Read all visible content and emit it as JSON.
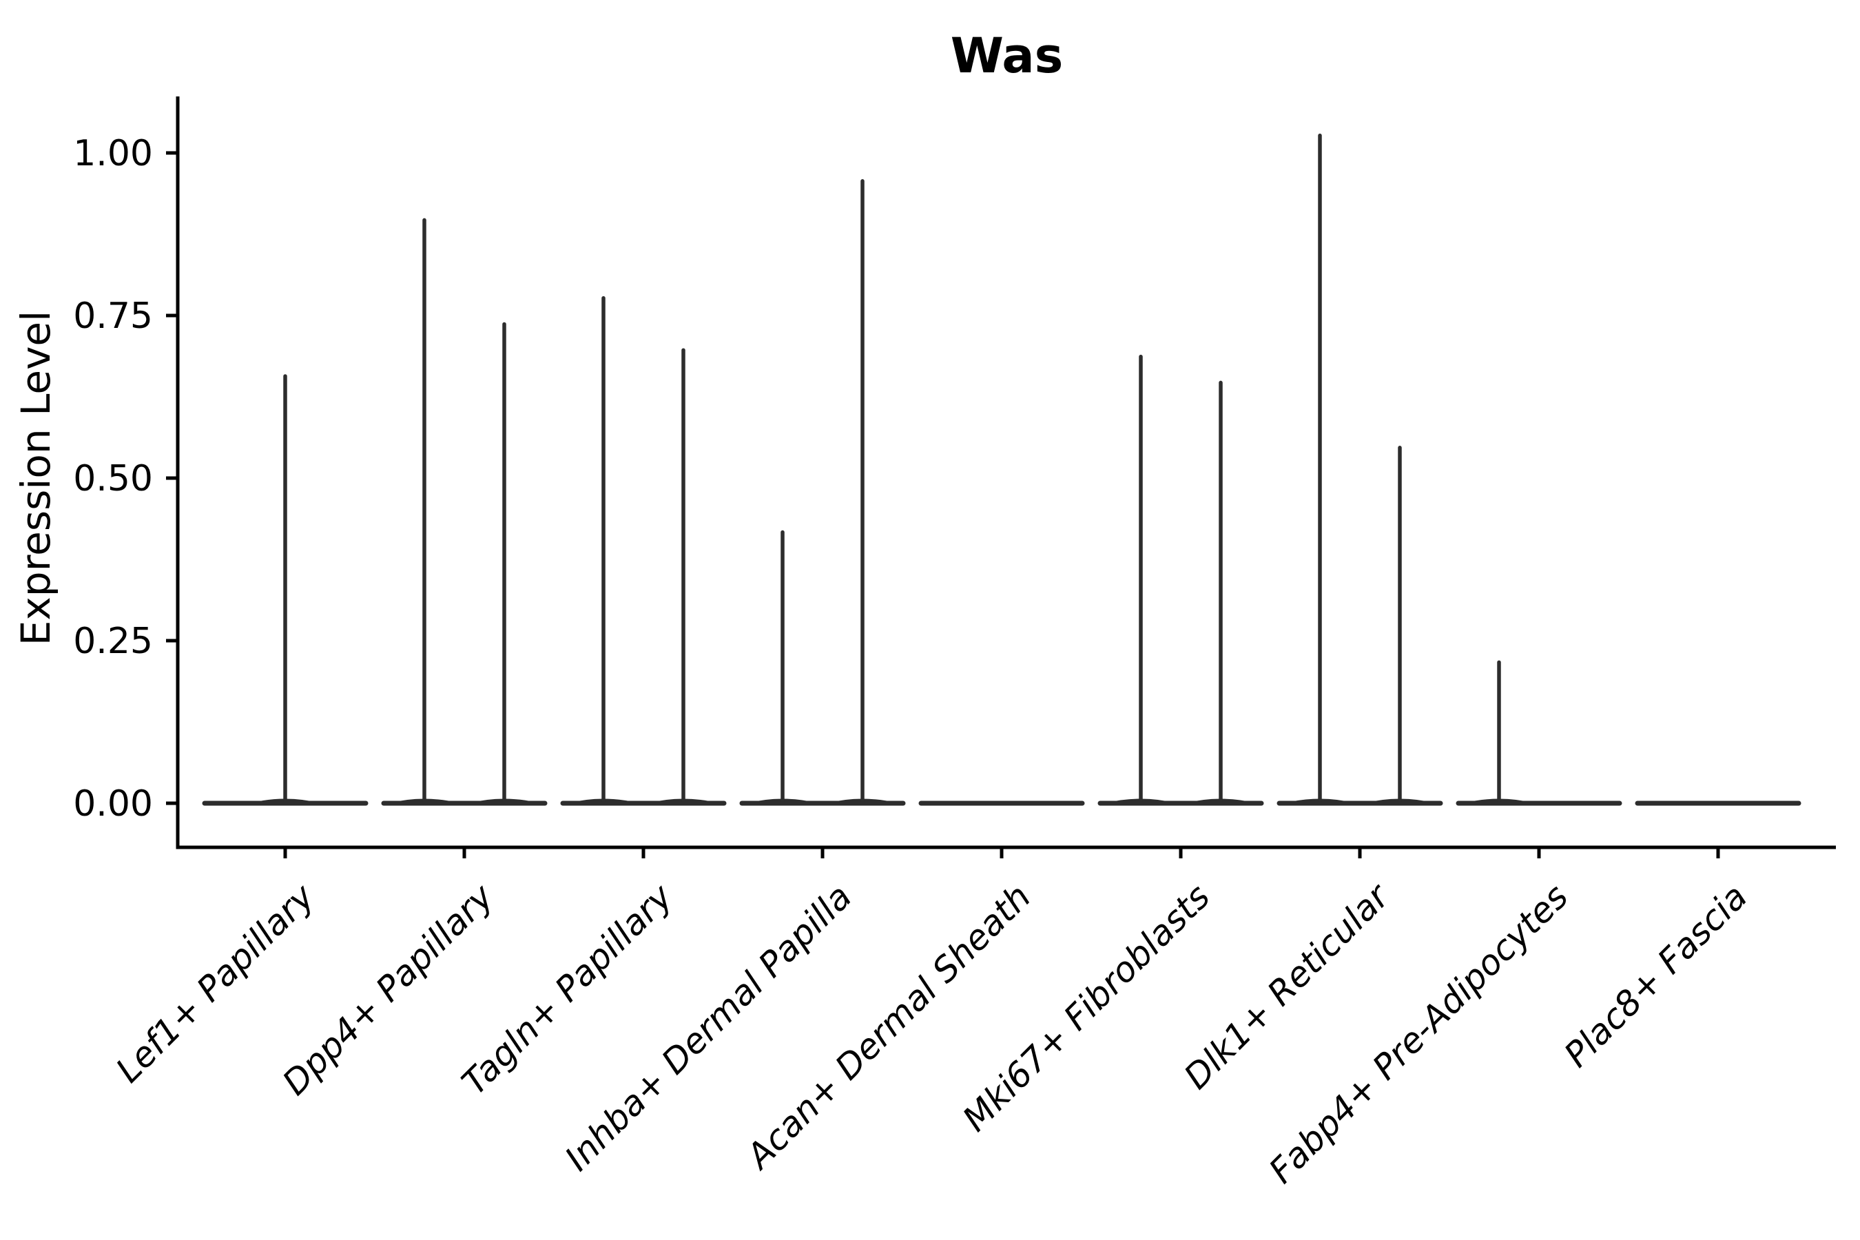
{
  "figure": {
    "title": "Was",
    "ylabel": "Expression Level"
  },
  "chart_data": {
    "type": "violin",
    "title": "Was",
    "xlabel": "",
    "ylabel": "Expression Level",
    "ylim": [
      0,
      1.09
    ],
    "grid": false,
    "legend": "none",
    "ytick_labels": [
      "1.00",
      "0.75",
      "0.50",
      "0.25",
      "0.00"
    ],
    "ytick_values": [
      1.0,
      0.75,
      0.5,
      0.25,
      0.0
    ],
    "x_label_style": "italic, rotated 45 degrees, right-anchored",
    "categories": [
      "Lef1+ Papillary",
      "Dpp4+ Papillary",
      "Tagln+ Papillary",
      "Inhba+ Dermal Papilla",
      "Acan+ Dermal Sheath",
      "Mki67+ Fibroblasts",
      "Dlk1+ Reticular",
      "Fabp4+ Pre-Adipocytes",
      "Plac8+ Fascia"
    ],
    "violins": [
      {
        "category": "Lef1+ Papillary",
        "spikes": [
          {
            "side": "center",
            "max": 0.66
          }
        ]
      },
      {
        "category": "Dpp4+ Papillary",
        "spikes": [
          {
            "side": "left",
            "max": 0.9
          },
          {
            "side": "right",
            "max": 0.74
          }
        ]
      },
      {
        "category": "Tagln+ Papillary",
        "spikes": [
          {
            "side": "left",
            "max": 0.78
          },
          {
            "side": "right",
            "max": 0.7
          }
        ]
      },
      {
        "category": "Inhba+ Dermal Papilla",
        "spikes": [
          {
            "side": "left",
            "max": 0.42
          },
          {
            "side": "right",
            "max": 0.96
          }
        ]
      },
      {
        "category": "Acan+ Dermal Sheath",
        "spikes": []
      },
      {
        "category": "Mki67+ Fibroblasts",
        "spikes": [
          {
            "side": "left",
            "max": 0.69
          },
          {
            "side": "right",
            "max": 0.65
          }
        ]
      },
      {
        "category": "Dlk1+ Reticular",
        "spikes": [
          {
            "side": "left",
            "max": 1.03
          },
          {
            "side": "right",
            "max": 0.55
          }
        ]
      },
      {
        "category": "Fabp4+ Pre-Adipocytes",
        "spikes": [
          {
            "side": "left",
            "max": 0.22
          }
        ]
      },
      {
        "category": "Plac8+ Fascia",
        "spikes": []
      }
    ],
    "colors": {
      "violin_stroke": "#2d2d2d",
      "axis": "#000000",
      "text": "#000000",
      "background": "#ffffff"
    }
  }
}
